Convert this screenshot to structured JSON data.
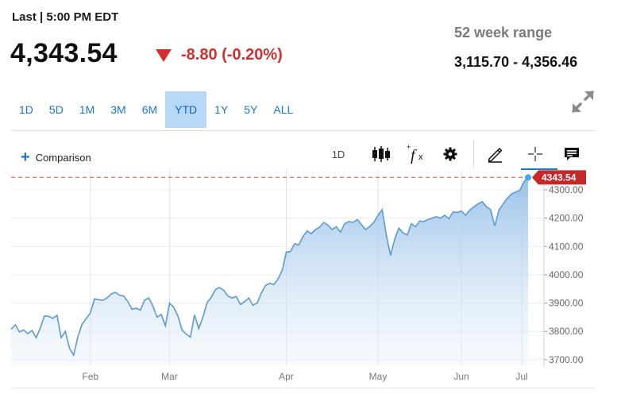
{
  "header": {
    "last_label": "Last | 5:00 PM EDT",
    "price": "4,343.54",
    "change": "-8.80 (-0.20%)",
    "change_color": "#d32f2f"
  },
  "range": {
    "label": "52 week range",
    "value": "3,115.70 - 4,356.46"
  },
  "timeframe_tabs": [
    {
      "label": "1D"
    },
    {
      "label": "5D"
    },
    {
      "label": "1M"
    },
    {
      "label": "3M"
    },
    {
      "label": "6M"
    },
    {
      "label": "YTD",
      "active": true
    },
    {
      "label": "1Y"
    },
    {
      "label": "5Y"
    },
    {
      "label": "ALL"
    }
  ],
  "toolbar": {
    "comparison_label": "Comparison",
    "interval_label": "1D",
    "icons": [
      "candlestick-icon",
      "function-icon",
      "gear-icon",
      "pencil-icon",
      "crosshair-icon",
      "chat-icon"
    ]
  },
  "colors": {
    "accent": "#1976d2",
    "active_tab_bg": "#b7d9f7",
    "line": "#5b9bd5",
    "price_tag": "#c62828",
    "dashed_line": "#e57373"
  },
  "chart_data": {
    "type": "area",
    "x_tick_labels": [
      "Feb",
      "Mar",
      "Apr",
      "May",
      "Jun",
      "Jul"
    ],
    "y_tick_labels": [
      "4300.00",
      "4200.00",
      "4100.00",
      "4000.00",
      "3900.00",
      "3800.00",
      "3700.00"
    ],
    "ylim": [
      3680,
      4370
    ],
    "last_value_label": "4343.54",
    "last_value": 4343.54,
    "grid": true,
    "series": [
      {
        "values": [
          3808,
          3823,
          3798,
          3805,
          3792,
          3803,
          3778,
          3812,
          3855,
          3853,
          3846,
          3857,
          3778,
          3800,
          3740,
          3716,
          3780,
          3825,
          3845,
          3865,
          3915,
          3912,
          3910,
          3918,
          3932,
          3938,
          3928,
          3925,
          3905,
          3878,
          3882,
          3875,
          3910,
          3918,
          3890,
          3850,
          3860,
          3820,
          3900,
          3885,
          3855,
          3805,
          3790,
          3780,
          3858,
          3810,
          3850,
          3902,
          3920,
          3948,
          3955,
          3945,
          3925,
          3918,
          3923,
          3895,
          3905,
          3918,
          3892,
          3900,
          3935,
          3962,
          3970,
          3965,
          3985,
          4015,
          4080,
          4082,
          4110,
          4105,
          4135,
          4155,
          4145,
          4160,
          4168,
          4185,
          4175,
          4160,
          4170,
          4150,
          4180,
          4188,
          4185,
          4195,
          4178,
          4160,
          4170,
          4185,
          4210,
          4230,
          4140,
          4068,
          4125,
          4165,
          4148,
          4140,
          4180,
          4170,
          4190,
          4188,
          4195,
          4200,
          4205,
          4200,
          4210,
          4198,
          4222,
          4220,
          4225,
          4210,
          4228,
          4240,
          4250,
          4258,
          4240,
          4230,
          4172,
          4228,
          4250,
          4270,
          4285,
          4292,
          4298,
          4328,
          4343.54
        ]
      }
    ]
  }
}
